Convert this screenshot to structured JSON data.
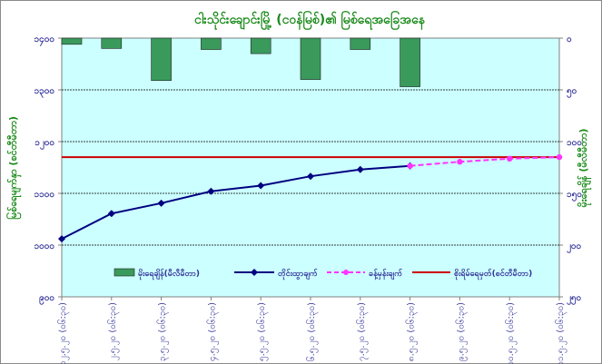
{
  "chart_data": {
    "type": "bar+line",
    "title": "ငါးသိုင်းချောင်းမြို့ (ငဝန်မြစ်)၏ မြစ်ရေအခြေအနေ",
    "categories": [
      "၁၂.၅.၂၀",
      "၂.၅.၂၀",
      "၃.၅.၂၀",
      "၄.၅.၂၀",
      "၅.၅.၂၀",
      "၆.၅.၂၀",
      "၇.၅.၂၀",
      "၈.၅.၂၀",
      "၉.၅.၂၀",
      "၁၀.၅.၂၀",
      "၁၁.၅.၂၀"
    ],
    "x_tick_labels": [
      "၁၂.၅.၂၀ (ဝ၆:၃၀)",
      "၂.၅.၂၀ (ဝ၆:၃၀)",
      "၃.၅.၂၀ (ဝ၆:၃၀)",
      "၄.၅.၂၀ (ဝ၆:၃၀)",
      "၅.၅.၂၀ (ဝ၆:၃၀)",
      "၆.၅.၂၀ (ဝ၆:၃၀)",
      "၇.၅.၂၀ (ဝ၆:၃၀)",
      "၈.၅.၂၀ (ဝ၆:၃၀)",
      "၉.၅.၂၀ (ဝ၆:၃၀)",
      "၁၀.၅.၂၀ (ဝ၆:၃၀)",
      "၁၁.၅.၂၀ (ဝ၆:၃၀)"
    ],
    "left_axis": {
      "label": "မြစ်ရေမျက်နှာ (စင်တီမီတာ)",
      "ylim": [
        900,
        1400
      ],
      "ticks": [
        900,
        1000,
        1100,
        1200,
        1300,
        1400
      ],
      "tick_labels": [
        "၉၀၀",
        "၁၀၀၀",
        "၁၁၀၀",
        "၁၂၀၀",
        "၁၃၀၀",
        "၁၄၀၀"
      ]
    },
    "right_axis": {
      "label": "မိုးရေချိန် (မီလီမီတာ)",
      "ylim": [
        250,
        0
      ],
      "inverted": true,
      "ticks": [
        0,
        50,
        100,
        150,
        200,
        250
      ],
      "tick_labels": [
        "ဝ",
        "၅၀",
        "၁၀၀",
        "၁၅၀",
        "၂၀၀",
        "၂၅၀"
      ]
    },
    "series": [
      {
        "name": "မိုးရေချိန်(မီလီမီတာ)",
        "kind": "bar",
        "axis": "right",
        "color": "#3a9a5c",
        "values": [
          6,
          10,
          41,
          11,
          15,
          40,
          11,
          47,
          null,
          null,
          null
        ]
      },
      {
        "name": "တိုင်းထွာချက်",
        "kind": "line",
        "axis": "left",
        "color": "#000080",
        "marker": "diamond",
        "values": [
          1012,
          1061,
          1081,
          1104,
          1115,
          1133,
          1146,
          1153,
          null,
          null,
          null
        ]
      },
      {
        "name": "ခန့်မှန်းချက်",
        "kind": "line",
        "axis": "left",
        "color": "#ff33ff",
        "dashed": true,
        "marker": "circle",
        "values": [
          null,
          null,
          null,
          null,
          null,
          null,
          null,
          1153,
          1161,
          1167,
          1170
        ]
      },
      {
        "name": "စိုးရိမ်ရေမှတ်(စင်တီမီတာ)",
        "kind": "hline",
        "axis": "left",
        "color": "#cc0000",
        "value": 1170
      }
    ],
    "grid": true,
    "legend_position": "bottom"
  }
}
